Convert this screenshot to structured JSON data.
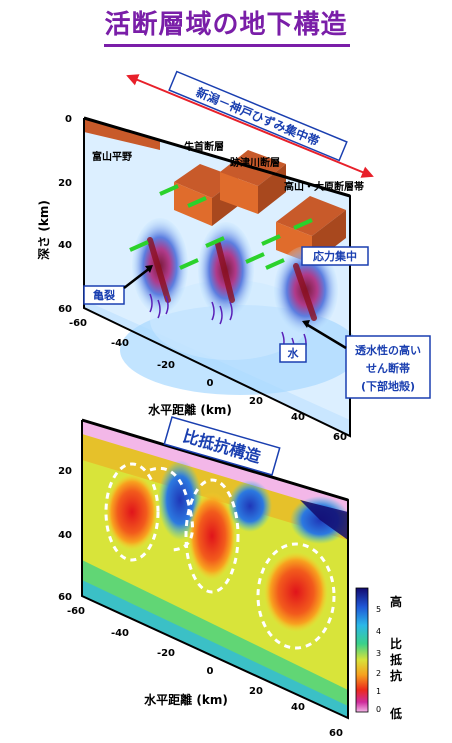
{
  "title": "活断層域の地下構造",
  "top_diagram": {
    "strain_band_label": "新潟－神戸ひずみ集中帯",
    "depth_label": "深さ (km)",
    "depth_ticks": [
      "0",
      "20",
      "40",
      "60"
    ],
    "x_ticks": [
      "-60",
      "-40",
      "-20",
      "0",
      "20",
      "40",
      "60"
    ],
    "x_label": "水平距離 (km)",
    "places": [
      "富山平野",
      "牛首断層",
      "跡津川断層",
      "高山・大原断層帯"
    ],
    "boxes": {
      "stress": "応力集中",
      "crack": "亀裂",
      "water": "水",
      "shear_zone": [
        "透水性の高い",
        "せん断帯",
        "(下部地殻)"
      ]
    }
  },
  "bottom_diagram": {
    "title": "比抵抗構造",
    "depth_ticks": [
      "20",
      "40",
      "60"
    ],
    "x_ticks": [
      "-60",
      "-40",
      "-20",
      "0",
      "20",
      "40",
      "60"
    ],
    "x_label": "水平距離 (km)",
    "colorbar": {
      "ticks": [
        "5",
        "4",
        "3",
        "2",
        "1",
        "0"
      ],
      "high": "高",
      "label": [
        "比",
        "抵",
        "抗"
      ],
      "low": "低"
    }
  }
}
